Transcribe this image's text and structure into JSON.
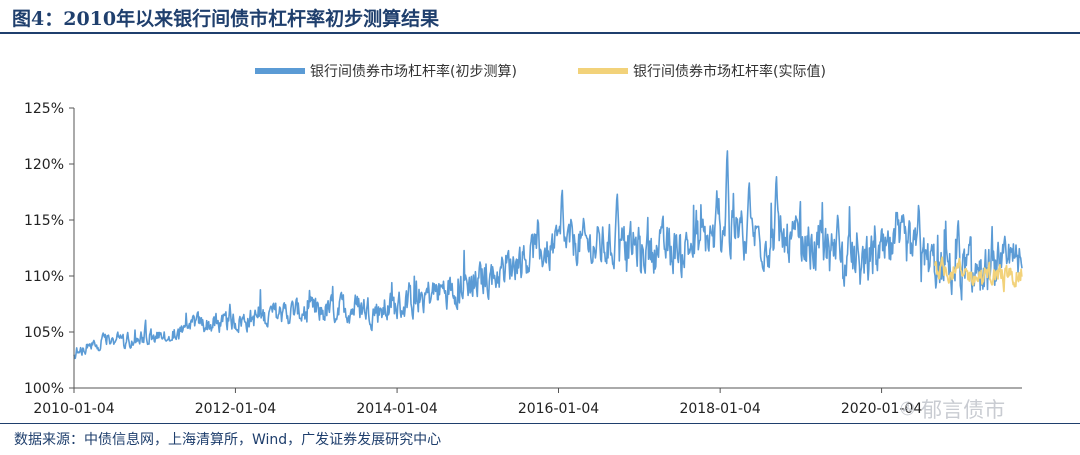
{
  "figure": {
    "title": "图4：2010年以来银行间债市杠杆率初步测算结果",
    "source": "数据来源：中债信息网，上海清算所，Wind，广发证券发展研究中心",
    "watermark": "郁言债市",
    "watermark_icon": "wechat-icon"
  },
  "chart_data": {
    "type": "line",
    "x_axis": {
      "type": "date",
      "min": "2010-01-04",
      "max": "2021-09-30",
      "ticks": [
        "2010-01-04",
        "2012-01-04",
        "2014-01-04",
        "2016-01-04",
        "2018-01-04",
        "2020-01-04"
      ]
    },
    "y_axis": {
      "min": 100,
      "max": 125,
      "unit": "%",
      "ticks": [
        100,
        105,
        110,
        115,
        120,
        125
      ],
      "tick_labels": [
        "100%",
        "105%",
        "110%",
        "115%",
        "120%",
        "125%"
      ]
    },
    "grid": false,
    "legend": "top-center",
    "series": [
      {
        "name": "银行间债券市场杠杆率(初步测算)",
        "color": "#5b9bd5",
        "points": [
          [
            "2010-01-04",
            103.0
          ],
          [
            "2010-04-01",
            104.0
          ],
          [
            "2010-07-01",
            104.2
          ],
          [
            "2010-10-01",
            104.4
          ],
          [
            "2011-01-04",
            104.6
          ],
          [
            "2011-04-01",
            105.0
          ],
          [
            "2011-07-01",
            105.8
          ],
          [
            "2011-10-01",
            105.6
          ],
          [
            "2012-01-04",
            106.0
          ],
          [
            "2012-04-01",
            106.2
          ],
          [
            "2012-07-01",
            106.6
          ],
          [
            "2012-10-01",
            106.8
          ],
          [
            "2013-01-04",
            106.8
          ],
          [
            "2013-04-01",
            107.0
          ],
          [
            "2013-07-01",
            107.2
          ],
          [
            "2013-10-01",
            107.0
          ],
          [
            "2014-01-04",
            107.2
          ],
          [
            "2014-04-01",
            108.0
          ],
          [
            "2014-07-01",
            108.6
          ],
          [
            "2014-10-01",
            109.2
          ],
          [
            "2015-01-04",
            109.4
          ],
          [
            "2015-04-01",
            110.2
          ],
          [
            "2015-07-01",
            111.5
          ],
          [
            "2015-10-01",
            112.2
          ],
          [
            "2016-01-04",
            112.6
          ],
          [
            "2016-04-01",
            113.0
          ],
          [
            "2016-07-01",
            112.5
          ],
          [
            "2016-10-01",
            112.8
          ],
          [
            "2017-01-04",
            112.5
          ],
          [
            "2017-04-01",
            112.2
          ],
          [
            "2017-07-01",
            112.6
          ],
          [
            "2017-10-01",
            113.0
          ],
          [
            "2018-01-04",
            113.5
          ],
          [
            "2018-04-01",
            114.0
          ],
          [
            "2018-07-01",
            113.5
          ],
          [
            "2018-10-01",
            113.0
          ],
          [
            "2019-01-04",
            112.8
          ],
          [
            "2019-04-01",
            112.5
          ],
          [
            "2019-07-01",
            111.8
          ],
          [
            "2019-10-01",
            111.0
          ],
          [
            "2020-01-04",
            111.5
          ],
          [
            "2020-04-01",
            112.5
          ],
          [
            "2020-07-01",
            111.5
          ],
          [
            "2020-10-01",
            110.6
          ],
          [
            "2021-01-04",
            110.6
          ],
          [
            "2021-04-01",
            110.2
          ],
          [
            "2021-07-01",
            110.4
          ],
          [
            "2021-09-30",
            110.6
          ]
        ],
        "spikes": [
          [
            "2016-01-20",
            118.2
          ],
          [
            "2016-09-25",
            117.8
          ],
          [
            "2017-12-20",
            117.6
          ],
          [
            "2018-02-05",
            122.0
          ],
          [
            "2018-05-15",
            118.8
          ],
          [
            "2018-09-15",
            119.5
          ],
          [
            "2019-06-20",
            115.8
          ],
          [
            "2020-06-20",
            116.8
          ],
          [
            "2020-12-15",
            115.4
          ]
        ]
      },
      {
        "name": "银行间债券市场杠杆率(实际值)",
        "color": "#f2d27a",
        "points": [
          [
            "2020-09-01",
            110.8
          ],
          [
            "2020-11-01",
            110.5
          ],
          [
            "2021-01-04",
            110.3
          ],
          [
            "2021-03-01",
            109.9
          ],
          [
            "2021-05-01",
            110.0
          ],
          [
            "2021-07-01",
            110.1
          ],
          [
            "2021-09-30",
            110.2
          ]
        ]
      }
    ]
  }
}
